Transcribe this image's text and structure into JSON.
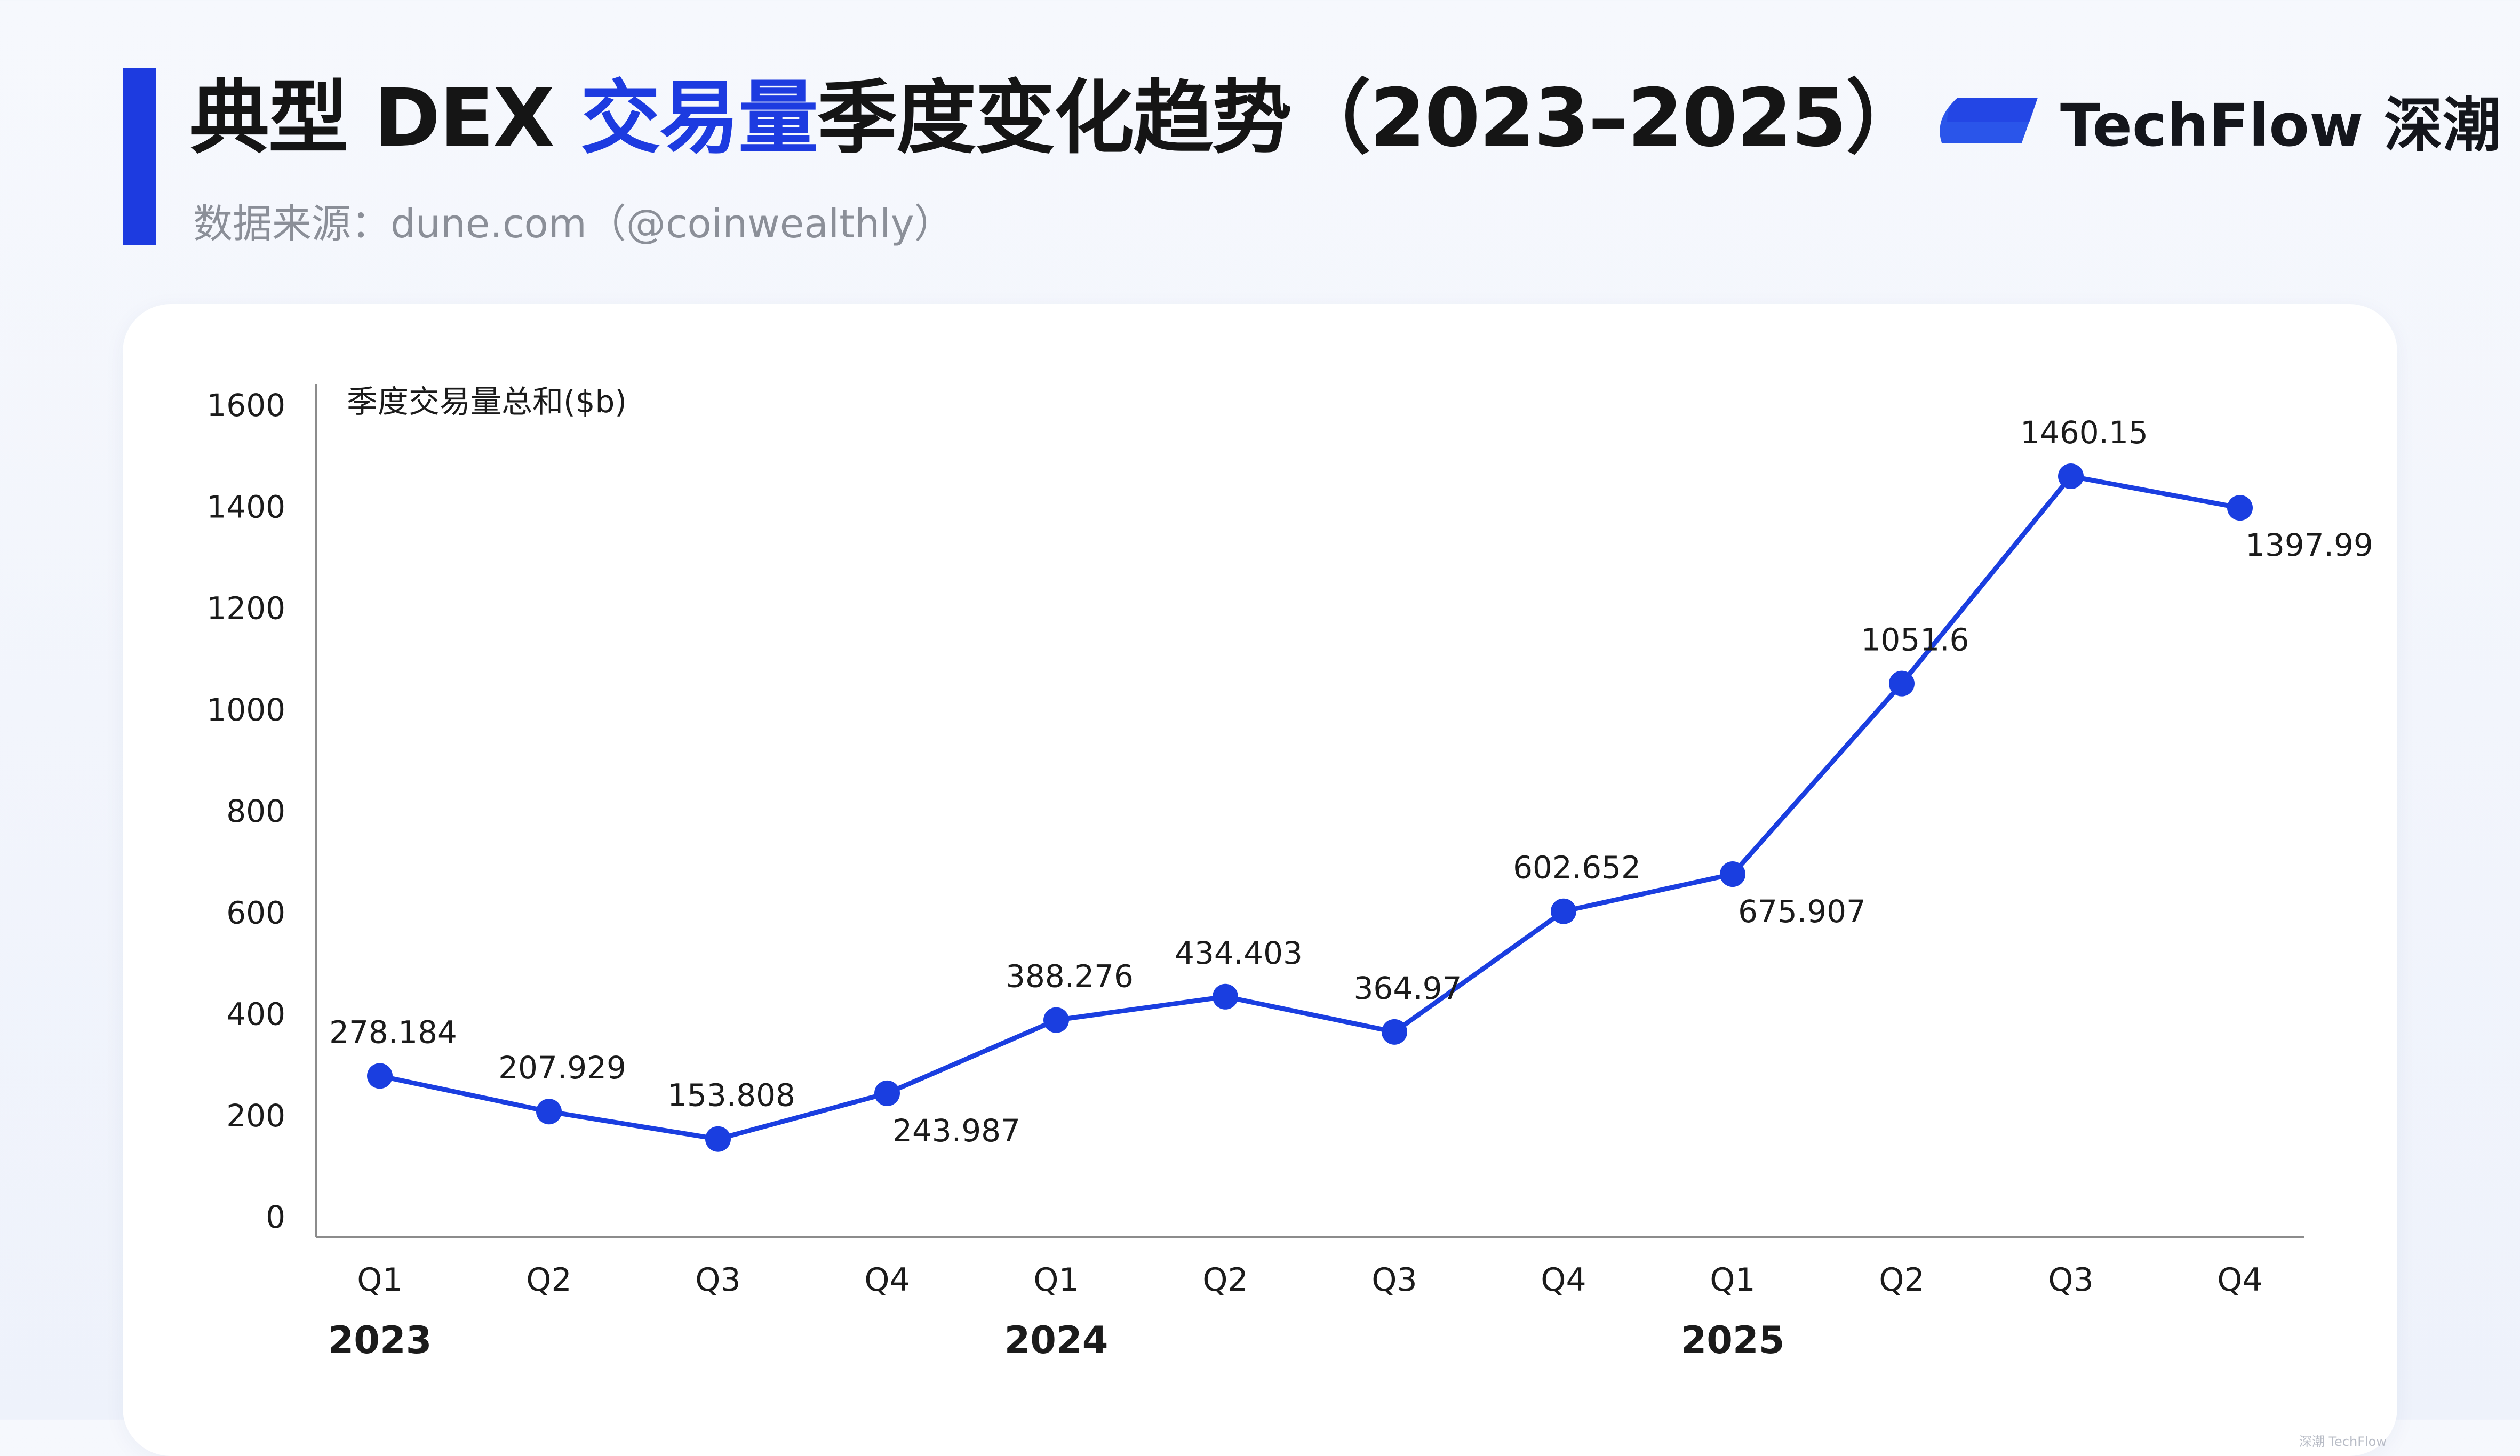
{
  "header": {
    "title_prefix": "典型 DEX ",
    "title_highlight": "交易量",
    "title_suffix": "季度变化趋势（2023–2025）",
    "subtitle": "数据来源：dune.com（@coinwealthly）"
  },
  "brand": {
    "name": "TechFlow 深潮",
    "watermark": "深潮 TechFlow"
  },
  "colors": {
    "accent": "#1d3be0",
    "line": "#1a3ee0",
    "axis": "#8c8c8c",
    "text": "#1b1b1b"
  },
  "chart_data": {
    "type": "line",
    "ylabel": "季度交易量总和($b)",
    "ylim": [
      0,
      1600
    ],
    "yticks": [
      0,
      200,
      400,
      600,
      800,
      1000,
      1200,
      1400,
      1600
    ],
    "categories": [
      "Q1",
      "Q2",
      "Q3",
      "Q4",
      "Q1",
      "Q2",
      "Q3",
      "Q4",
      "Q1",
      "Q2",
      "Q3",
      "Q4"
    ],
    "years": [
      "2023",
      "2024",
      "2025"
    ],
    "values": [
      278.184,
      207.929,
      153.808,
      243.987,
      388.276,
      434.403,
      364.97,
      602.652,
      675.907,
      1051.6,
      1460.15,
      1397.99
    ],
    "value_labels": [
      "278.184",
      "207.929",
      "153.808",
      "243.987",
      "388.276",
      "434.403",
      "364.97",
      "602.652",
      "675.907",
      "1051.6",
      "1460.15",
      "1397.99"
    ],
    "label_positions": [
      "above",
      "above",
      "above",
      "below",
      "above",
      "above",
      "above",
      "above",
      "below",
      "above",
      "above",
      "below"
    ],
    "grid": false,
    "legend": "none"
  }
}
